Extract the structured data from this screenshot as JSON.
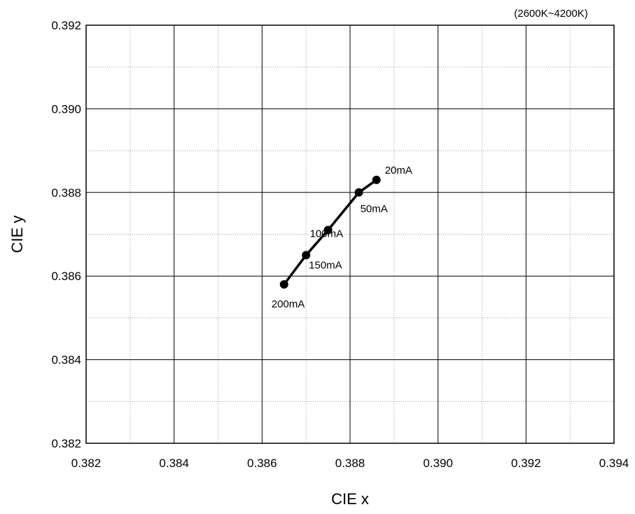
{
  "chart_data": {
    "type": "line",
    "note": "(2600K~4200K)",
    "xlabel": "CIE x",
    "ylabel": "CIE y",
    "xlim": [
      0.382,
      0.394
    ],
    "ylim": [
      0.382,
      0.392
    ],
    "xticks": [
      "0.382",
      "0.384",
      "0.386",
      "0.388",
      "0.390",
      "0.392",
      "0.394"
    ],
    "yticks": [
      "0.382",
      "0.384",
      "0.386",
      "0.388",
      "0.390",
      "0.392"
    ],
    "grid": {
      "major": true,
      "minor": true
    },
    "series": [
      {
        "points": [
          {
            "label": "20mA",
            "x": 0.3886,
            "y": 0.3883
          },
          {
            "label": "50mA",
            "x": 0.3882,
            "y": 0.388
          },
          {
            "label": "100mA",
            "x": 0.3875,
            "y": 0.3871
          },
          {
            "label": "150mA",
            "x": 0.387,
            "y": 0.3865
          },
          {
            "label": "200mA",
            "x": 0.3865,
            "y": 0.3858
          }
        ]
      }
    ],
    "colors": {
      "line": "#000000",
      "grid_major": "#000000",
      "grid_minor": "#9a9a9a"
    }
  }
}
